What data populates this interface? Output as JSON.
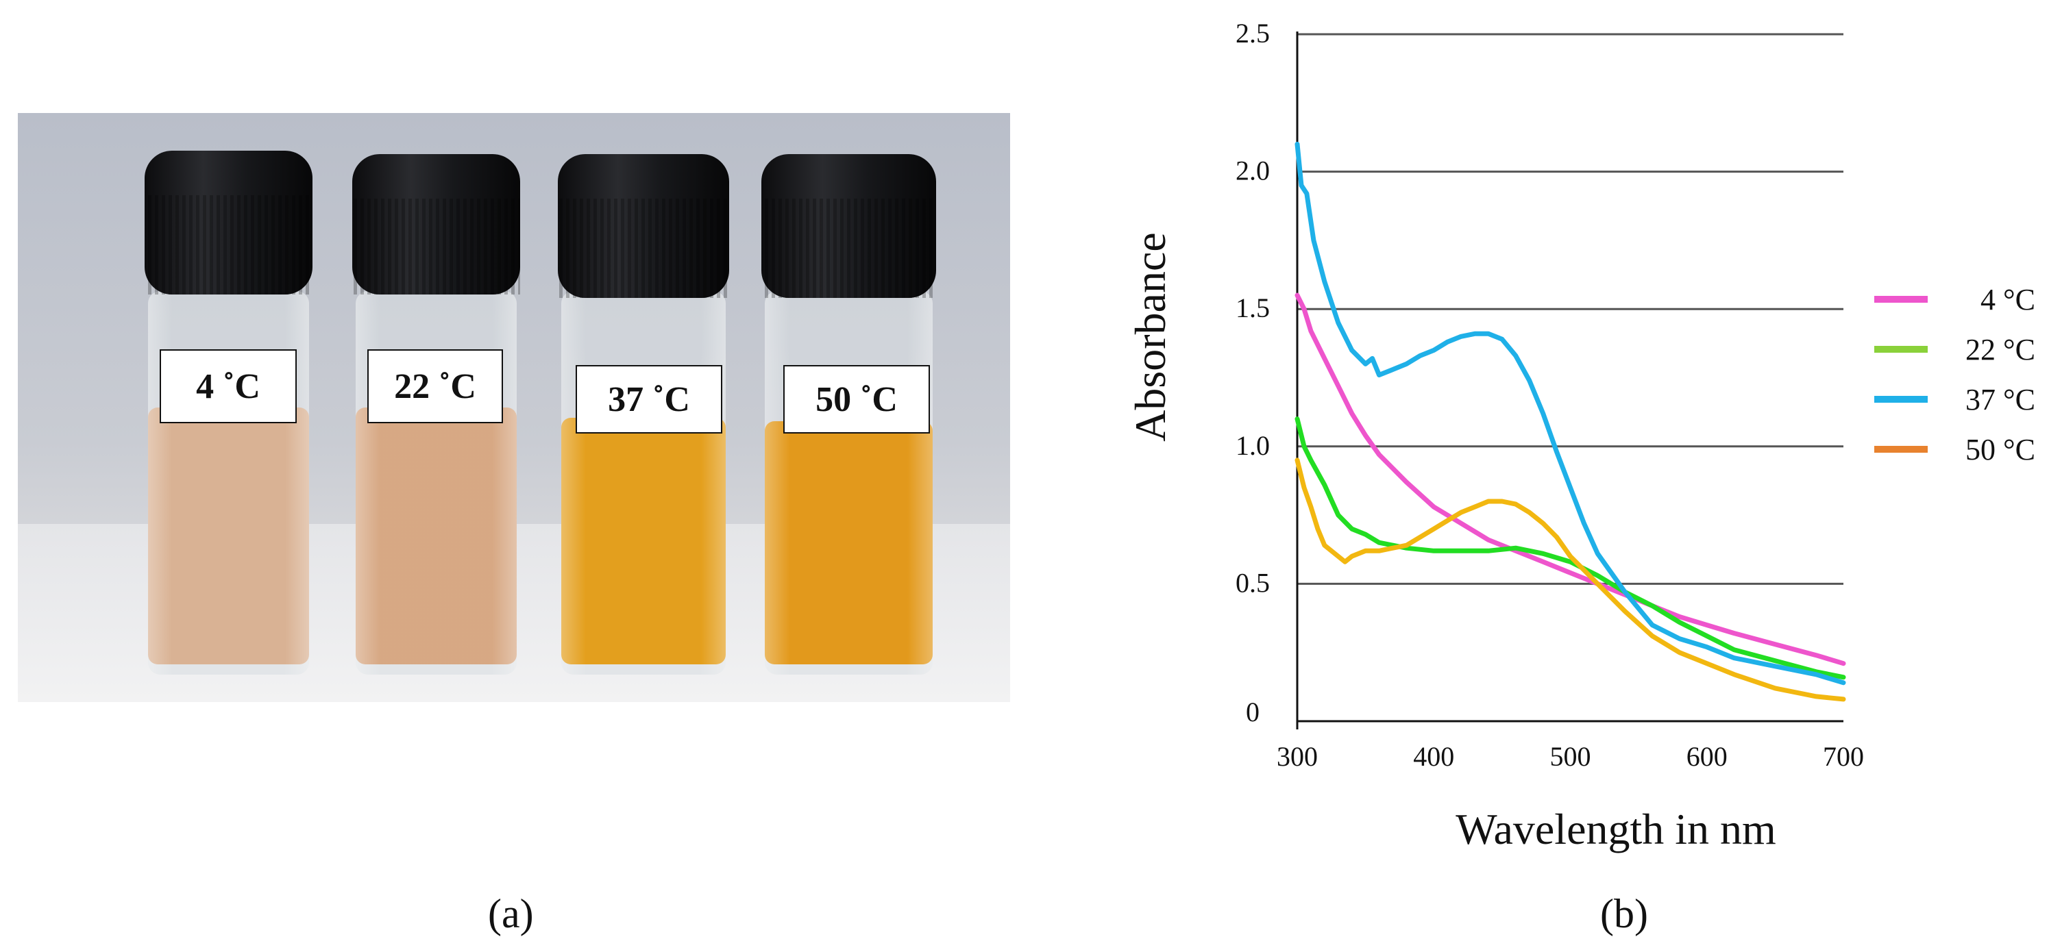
{
  "panels": {
    "a": {
      "caption": "(a)",
      "vial_labels": [
        "4 ˚C",
        "22 ˚C",
        "37 ˚C",
        "50 ˚C"
      ],
      "solution_colors": [
        "#d7ae8e",
        "#d5a47e",
        "#e29a12",
        "#e19410"
      ]
    },
    "b": {
      "caption": "(b)"
    }
  },
  "chart_data": {
    "type": "line",
    "xlabel": "Wavelength in nm",
    "ylabel": "Absorbance",
    "xlim": [
      300,
      700
    ],
    "ylim": [
      0,
      2.5
    ],
    "x_ticks": [
      "300",
      "400",
      "500",
      "600",
      "700"
    ],
    "y_ticks": [
      "0",
      "0.5",
      "1.0",
      "1.5",
      "2.0",
      "2.5"
    ],
    "grid": "horizontal",
    "legend_position": "right",
    "legend": [
      {
        "label": "4 °C",
        "color": "#ee55cc"
      },
      {
        "label": "22 °C",
        "color": "#8ad13a"
      },
      {
        "label": "37 °C",
        "color": "#1fb0e8"
      },
      {
        "label": "50 °C",
        "color": "#e8822e"
      }
    ],
    "series": [
      {
        "color": "#ee55cc",
        "x": [
          300,
          305,
          310,
          320,
          330,
          340,
          350,
          360,
          380,
          400,
          420,
          440,
          460,
          480,
          500,
          520,
          540,
          560,
          580,
          600,
          620,
          650,
          680,
          700
        ],
        "y": [
          1.55,
          1.5,
          1.42,
          1.32,
          1.22,
          1.12,
          1.04,
          0.97,
          0.87,
          0.78,
          0.72,
          0.66,
          0.62,
          0.58,
          0.54,
          0.5,
          0.46,
          0.42,
          0.38,
          0.35,
          0.32,
          0.28,
          0.24,
          0.21
        ]
      },
      {
        "color": "#22dd22",
        "x": [
          300,
          305,
          310,
          320,
          330,
          340,
          350,
          360,
          380,
          400,
          420,
          440,
          460,
          480,
          500,
          520,
          540,
          560,
          580,
          600,
          620,
          650,
          680,
          700
        ],
        "y": [
          1.1,
          1.0,
          0.95,
          0.86,
          0.75,
          0.7,
          0.68,
          0.65,
          0.63,
          0.62,
          0.62,
          0.62,
          0.63,
          0.61,
          0.58,
          0.53,
          0.47,
          0.42,
          0.36,
          0.31,
          0.26,
          0.22,
          0.18,
          0.16
        ]
      },
      {
        "color": "#1fb0e8",
        "x": [
          300,
          303,
          307,
          312,
          320,
          330,
          340,
          350,
          355,
          360,
          370,
          380,
          390,
          400,
          410,
          420,
          430,
          440,
          450,
          460,
          470,
          480,
          490,
          500,
          510,
          520,
          540,
          560,
          580,
          600,
          620,
          650,
          680,
          700
        ],
        "y": [
          2.1,
          1.95,
          1.92,
          1.75,
          1.6,
          1.45,
          1.35,
          1.3,
          1.32,
          1.26,
          1.28,
          1.3,
          1.33,
          1.35,
          1.38,
          1.4,
          1.41,
          1.41,
          1.39,
          1.33,
          1.24,
          1.12,
          0.98,
          0.85,
          0.72,
          0.61,
          0.47,
          0.35,
          0.3,
          0.27,
          0.23,
          0.2,
          0.17,
          0.14
        ]
      },
      {
        "color": "#f2b710",
        "x": [
          300,
          305,
          310,
          315,
          320,
          330,
          335,
          340,
          350,
          360,
          370,
          380,
          400,
          410,
          420,
          430,
          440,
          450,
          460,
          470,
          480,
          490,
          500,
          510,
          520,
          540,
          560,
          580,
          600,
          620,
          650,
          680,
          700
        ],
        "y": [
          0.95,
          0.85,
          0.78,
          0.7,
          0.64,
          0.6,
          0.58,
          0.6,
          0.62,
          0.62,
          0.63,
          0.64,
          0.7,
          0.73,
          0.76,
          0.78,
          0.8,
          0.8,
          0.79,
          0.76,
          0.72,
          0.67,
          0.6,
          0.55,
          0.5,
          0.4,
          0.31,
          0.25,
          0.21,
          0.17,
          0.12,
          0.09,
          0.08
        ]
      }
    ]
  }
}
